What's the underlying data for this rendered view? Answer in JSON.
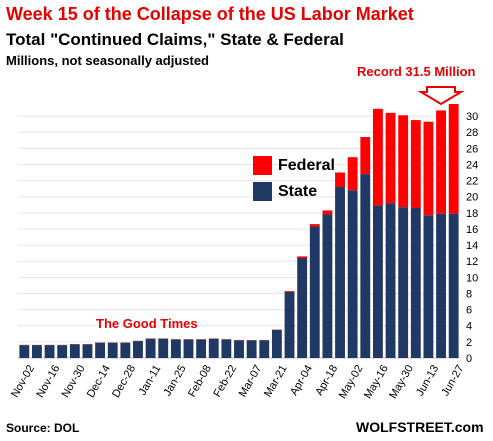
{
  "title": "Week 15 of the Collapse of the US Labor Market",
  "subtitle_line1": "Total \"Continued Claims,\" State & Federal",
  "subtitle_line2": "Millions, not seasonally adjusted",
  "record_label": "Record 31.5 Million",
  "annotation": "The Good Times",
  "source": "Source: DOL",
  "brand": "WOLFSTREET.com",
  "colors": {
    "state": "#1f3864",
    "federal": "#ff0000",
    "title": "#e60000",
    "grid": "#e6e6e6"
  },
  "chart_data": {
    "type": "bar",
    "stacked": true,
    "categories": [
      "Nov-02",
      "Nov-09",
      "Nov-16",
      "Nov-23",
      "Nov-30",
      "Dec-07",
      "Dec-14",
      "Dec-21",
      "Dec-28",
      "Jan-04",
      "Jan-11",
      "Jan-18",
      "Jan-25",
      "Feb-01",
      "Feb-08",
      "Feb-15",
      "Feb-22",
      "Feb-29",
      "Mar-07",
      "Mar-14",
      "Mar-21",
      "Mar-28",
      "Apr-04",
      "Apr-11",
      "Apr-18",
      "Apr-25",
      "May-02",
      "May-09",
      "May-16",
      "May-23",
      "May-30",
      "Jun-06",
      "Jun-13",
      "Jun-20",
      "Jun-27"
    ],
    "x_tick_labels": [
      "Nov-02",
      "Nov-16",
      "Nov-30",
      "Dec-14",
      "Dec-28",
      "Jan-11",
      "Jan-25",
      "Feb-08",
      "Feb-22",
      "Mar-07",
      "Mar-21",
      "Apr-04",
      "Apr-18",
      "May-02",
      "May-16",
      "May-30",
      "Jun-13",
      "Jun-27"
    ],
    "series": [
      {
        "name": "State",
        "values": [
          1.6,
          1.6,
          1.6,
          1.6,
          1.7,
          1.7,
          1.9,
          1.9,
          1.9,
          2.1,
          2.4,
          2.4,
          2.3,
          2.3,
          2.3,
          2.4,
          2.3,
          2.2,
          2.2,
          2.2,
          3.5,
          8.2,
          12.4,
          16.3,
          17.8,
          21.2,
          20.8,
          22.8,
          18.9,
          19.2,
          18.7,
          18.6,
          17.7,
          17.9,
          17.9
        ]
      },
      {
        "name": "Federal",
        "values": [
          0.03,
          0.03,
          0.03,
          0.03,
          0.03,
          0.03,
          0.03,
          0.03,
          0.03,
          0.03,
          0.03,
          0.03,
          0.03,
          0.03,
          0.03,
          0.03,
          0.03,
          0.03,
          0.03,
          0.03,
          0.03,
          0.1,
          0.2,
          0.3,
          0.5,
          1.8,
          4.1,
          4.6,
          12.0,
          11.2,
          11.4,
          10.9,
          11.6,
          12.8,
          13.6
        ]
      }
    ],
    "ylim": [
      0,
      31
    ],
    "yticks": [
      0,
      2,
      4,
      6,
      8,
      10,
      12,
      14,
      16,
      18,
      20,
      22,
      24,
      26,
      28,
      30
    ],
    "grid": true,
    "legend_position": "inside-left-middle",
    "legend": [
      {
        "name": "Federal"
      },
      {
        "name": "State"
      }
    ]
  }
}
